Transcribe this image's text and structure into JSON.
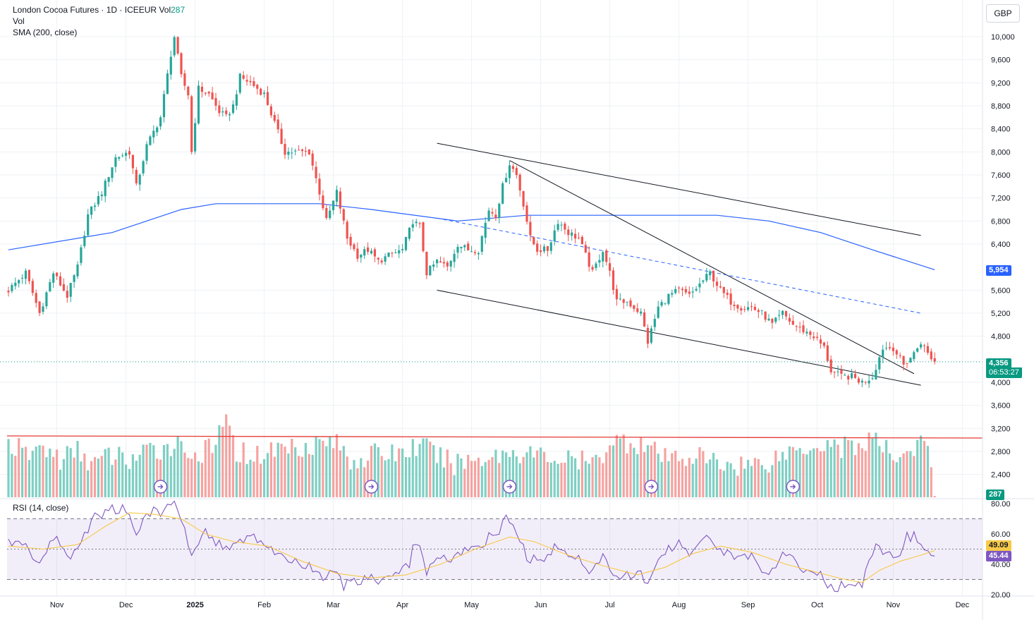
{
  "legend": {
    "symbol": "London Cocoa Futures · 1D · ICEEUR",
    "vol_label": "Vol",
    "vol_value": "287",
    "vol_title": "Vol",
    "sma_title": "SMA (200, close)",
    "rsi_title": "RSI (14, close)"
  },
  "currency": "GBP",
  "price_tags": {
    "sma_value": "5,954",
    "last_price": "4,356",
    "countdown": "06:53:27",
    "volume_value": "287",
    "rsi_ma_value": "49.09",
    "rsi_value": "45.44"
  },
  "colors": {
    "up": "#26a69a",
    "down": "#ef5350",
    "sma": "#2962ff",
    "rsi": "#7e57c2",
    "rsi_ma": "#f7c948",
    "vol_up": "#7fcfc3",
    "vol_down": "#f5a3a1",
    "vol_ref_line": "#e53935",
    "trendline": "#131722",
    "dashed_channel": "#2962ff"
  },
  "chart_data": {
    "type": "candlestick",
    "price_axis": {
      "ticks": [
        "10,000",
        "9,600",
        "9,200",
        "8,800",
        "8,400",
        "8,000",
        "7,600",
        "7,200",
        "6,800",
        "6,400",
        "5,600",
        "5,200",
        "4,800",
        "4,000",
        "3,600",
        "3,200",
        "2,800",
        "2,400"
      ],
      "ylim": [
        2200,
        10200
      ]
    },
    "rsi_axis": {
      "ticks": [
        "80.00",
        "60.00",
        "40.00",
        "20.00"
      ],
      "ylim": [
        20,
        80
      ],
      "bands": [
        70,
        50,
        30
      ]
    },
    "x_axis": {
      "labels": [
        "Nov",
        "Dec",
        "2025",
        "Feb",
        "Mar",
        "Apr",
        "May",
        "Jun",
        "Jul",
        "Aug",
        "Sep",
        "Oct",
        "Nov",
        "Dec"
      ],
      "label_bar_index": [
        14,
        34,
        54,
        74,
        94,
        114,
        134,
        154,
        174,
        194,
        214,
        234,
        256,
        276
      ]
    },
    "price_path": [
      [
        0,
        5600
      ],
      [
        5,
        5900
      ],
      [
        9,
        5200
      ],
      [
        13,
        5900
      ],
      [
        17,
        5500
      ],
      [
        20,
        6000
      ],
      [
        23,
        6900
      ],
      [
        27,
        7300
      ],
      [
        31,
        7900
      ],
      [
        35,
        8000
      ],
      [
        37,
        7400
      ],
      [
        40,
        8100
      ],
      [
        44,
        8600
      ],
      [
        47,
        9700
      ],
      [
        48,
        10000
      ],
      [
        50,
        9300
      ],
      [
        52,
        9000
      ],
      [
        53,
        8000
      ],
      [
        55,
        9100
      ],
      [
        58,
        9000
      ],
      [
        61,
        8700
      ],
      [
        63,
        8600
      ],
      [
        65,
        8800
      ],
      [
        67,
        9300
      ],
      [
        70,
        9200
      ],
      [
        74,
        9000
      ],
      [
        77,
        8500
      ],
      [
        80,
        8000
      ],
      [
        84,
        8000
      ],
      [
        87,
        8000
      ],
      [
        90,
        7300
      ],
      [
        92,
        6800
      ],
      [
        95,
        7300
      ],
      [
        98,
        6500
      ],
      [
        101,
        6200
      ],
      [
        104,
        6300
      ],
      [
        107,
        6100
      ],
      [
        110,
        6200
      ],
      [
        114,
        6300
      ],
      [
        117,
        6800
      ],
      [
        119,
        6700
      ],
      [
        121,
        5900
      ],
      [
        124,
        6100
      ],
      [
        127,
        6000
      ],
      [
        130,
        6400
      ],
      [
        133,
        6300
      ],
      [
        136,
        6300
      ],
      [
        139,
        7000
      ],
      [
        141,
        6900
      ],
      [
        143,
        7400
      ],
      [
        145,
        7800
      ],
      [
        147,
        7600
      ],
      [
        149,
        7100
      ],
      [
        151,
        6500
      ],
      [
        153,
        6300
      ],
      [
        156,
        6300
      ],
      [
        159,
        6800
      ],
      [
        162,
        6600
      ],
      [
        165,
        6500
      ],
      [
        167,
        6200
      ],
      [
        169,
        5900
      ],
      [
        172,
        6300
      ],
      [
        174,
        5900
      ],
      [
        176,
        5400
      ],
      [
        179,
        5400
      ],
      [
        183,
        5200
      ],
      [
        185,
        4700
      ],
      [
        188,
        5300
      ],
      [
        191,
        5500
      ],
      [
        194,
        5600
      ],
      [
        197,
        5500
      ],
      [
        200,
        5700
      ],
      [
        203,
        5900
      ],
      [
        206,
        5600
      ],
      [
        209,
        5400
      ],
      [
        212,
        5300
      ],
      [
        215,
        5300
      ],
      [
        218,
        5200
      ],
      [
        221,
        5000
      ],
      [
        224,
        5200
      ],
      [
        227,
        5000
      ],
      [
        230,
        4900
      ],
      [
        233,
        4800
      ],
      [
        236,
        4600
      ],
      [
        238,
        4200
      ],
      [
        241,
        4100
      ],
      [
        244,
        4100
      ],
      [
        247,
        4000
      ],
      [
        250,
        4100
      ],
      [
        253,
        4600
      ],
      [
        256,
        4600
      ],
      [
        259,
        4300
      ],
      [
        262,
        4500
      ],
      [
        264,
        4700
      ],
      [
        266,
        4500
      ],
      [
        268,
        4356
      ]
    ],
    "sma": {
      "name": "SMA (200, close)",
      "points": [
        [
          0,
          6300
        ],
        [
          30,
          6600
        ],
        [
          50,
          7000
        ],
        [
          60,
          7100
        ],
        [
          75,
          7100
        ],
        [
          90,
          7100
        ],
        [
          105,
          7000
        ],
        [
          130,
          6800
        ],
        [
          150,
          6900
        ],
        [
          175,
          6900
        ],
        [
          205,
          6900
        ],
        [
          220,
          6800
        ],
        [
          235,
          6600
        ],
        [
          250,
          6300
        ],
        [
          268,
          5954
        ]
      ]
    },
    "volume_series": [
      [
        0,
        1
      ],
      [
        5,
        0.7
      ],
      [
        10,
        0.9
      ],
      [
        15,
        0.6
      ],
      [
        20,
        0.8
      ],
      [
        25,
        0.5
      ],
      [
        30,
        0.7
      ],
      [
        35,
        0.6
      ],
      [
        42,
        0.8
      ],
      [
        48,
        1
      ],
      [
        55,
        0.7
      ],
      [
        60,
        0.9
      ],
      [
        62,
        1.6
      ],
      [
        66,
        0.8
      ],
      [
        72,
        0.7
      ],
      [
        79,
        0.9
      ],
      [
        92,
        1
      ],
      [
        94,
        1.05
      ],
      [
        99,
        0.6
      ],
      [
        105,
        0.7
      ],
      [
        115,
        0.8
      ],
      [
        119,
        0.95
      ],
      [
        128,
        0.5
      ],
      [
        140,
        0.7
      ],
      [
        147,
        0.8
      ],
      [
        160,
        0.6
      ],
      [
        170,
        0.5
      ],
      [
        174,
        1.05
      ],
      [
        183,
        1
      ],
      [
        190,
        0.6
      ],
      [
        198,
        0.7
      ],
      [
        206,
        0.5
      ],
      [
        218,
        0.5
      ],
      [
        226,
        0.8
      ],
      [
        232,
        0.95
      ],
      [
        238,
        1
      ],
      [
        241,
        0.9
      ],
      [
        247,
        0.95
      ],
      [
        250,
        1.1
      ],
      [
        255,
        0.7
      ],
      [
        260,
        0.8
      ],
      [
        265,
        1
      ],
      [
        268,
        0.1
      ]
    ],
    "volume_reference": 3050,
    "rsi_path": [
      [
        0,
        55
      ],
      [
        5,
        52
      ],
      [
        9,
        40
      ],
      [
        13,
        58
      ],
      [
        18,
        45
      ],
      [
        21,
        55
      ],
      [
        25,
        72
      ],
      [
        30,
        76
      ],
      [
        34,
        76
      ],
      [
        37,
        62
      ],
      [
        40,
        74
      ],
      [
        45,
        75
      ],
      [
        48,
        80
      ],
      [
        50,
        72
      ],
      [
        53,
        45
      ],
      [
        56,
        62
      ],
      [
        59,
        57
      ],
      [
        63,
        50
      ],
      [
        66,
        55
      ],
      [
        70,
        57
      ],
      [
        73,
        56
      ],
      [
        76,
        50
      ],
      [
        80,
        43
      ],
      [
        84,
        40
      ],
      [
        88,
        38
      ],
      [
        91,
        30
      ],
      [
        94,
        35
      ],
      [
        97,
        26
      ],
      [
        100,
        28
      ],
      [
        104,
        30
      ],
      [
        108,
        30
      ],
      [
        112,
        33
      ],
      [
        116,
        40
      ],
      [
        117,
        55
      ],
      [
        119,
        50
      ],
      [
        121,
        35
      ],
      [
        124,
        44
      ],
      [
        128,
        43
      ],
      [
        133,
        50
      ],
      [
        137,
        50
      ],
      [
        139,
        60
      ],
      [
        142,
        61
      ],
      [
        144,
        70
      ],
      [
        147,
        62
      ],
      [
        150,
        45
      ],
      [
        153,
        42
      ],
      [
        156,
        47
      ],
      [
        159,
        52
      ],
      [
        162,
        48
      ],
      [
        165,
        45
      ],
      [
        168,
        35
      ],
      [
        172,
        44
      ],
      [
        175,
        32
      ],
      [
        179,
        33
      ],
      [
        183,
        34
      ],
      [
        185,
        26
      ],
      [
        188,
        40
      ],
      [
        191,
        50
      ],
      [
        194,
        56
      ],
      [
        197,
        48
      ],
      [
        200,
        53
      ],
      [
        203,
        58
      ],
      [
        206,
        51
      ],
      [
        209,
        45
      ],
      [
        212,
        44
      ],
      [
        215,
        46
      ],
      [
        218,
        38
      ],
      [
        221,
        34
      ],
      [
        224,
        46
      ],
      [
        227,
        42
      ],
      [
        230,
        38
      ],
      [
        233,
        36
      ],
      [
        236,
        30
      ],
      [
        238,
        24
      ],
      [
        241,
        26
      ],
      [
        244,
        27
      ],
      [
        247,
        26
      ],
      [
        249,
        40
      ],
      [
        251,
        56
      ],
      [
        253,
        45
      ],
      [
        256,
        46
      ],
      [
        258,
        48
      ],
      [
        260,
        58
      ],
      [
        262,
        58
      ],
      [
        264,
        50
      ],
      [
        266,
        46
      ],
      [
        268,
        45.44
      ]
    ],
    "rsi_ma_path": [
      [
        0,
        52
      ],
      [
        10,
        50
      ],
      [
        20,
        53
      ],
      [
        28,
        65
      ],
      [
        35,
        74
      ],
      [
        42,
        73
      ],
      [
        50,
        70
      ],
      [
        57,
        60
      ],
      [
        65,
        55
      ],
      [
        75,
        52
      ],
      [
        85,
        42
      ],
      [
        95,
        34
      ],
      [
        105,
        31
      ],
      [
        115,
        33
      ],
      [
        125,
        40
      ],
      [
        135,
        50
      ],
      [
        145,
        58
      ],
      [
        152,
        55
      ],
      [
        162,
        46
      ],
      [
        172,
        39
      ],
      [
        182,
        33
      ],
      [
        190,
        38
      ],
      [
        198,
        47
      ],
      [
        206,
        52
      ],
      [
        215,
        48
      ],
      [
        225,
        40
      ],
      [
        235,
        34
      ],
      [
        242,
        30
      ],
      [
        247,
        28
      ],
      [
        252,
        36
      ],
      [
        258,
        42
      ],
      [
        264,
        46
      ],
      [
        268,
        49.09
      ]
    ],
    "trendlines": [
      {
        "from": [
          124,
          8150
        ],
        "to": [
          264,
          6550
        ],
        "style": "solid"
      },
      {
        "from": [
          124,
          5600
        ],
        "to": [
          264,
          3950
        ],
        "style": "solid"
      },
      {
        "from": [
          145,
          7850
        ],
        "to": [
          262,
          4150
        ],
        "style": "solid"
      },
      {
        "from": [
          124,
          6850
        ],
        "to": [
          264,
          5200
        ],
        "style": "dashed"
      }
    ],
    "last_price_line": 4356,
    "earnings_markers_bar_index": [
      44,
      105,
      145,
      186,
      227
    ]
  }
}
